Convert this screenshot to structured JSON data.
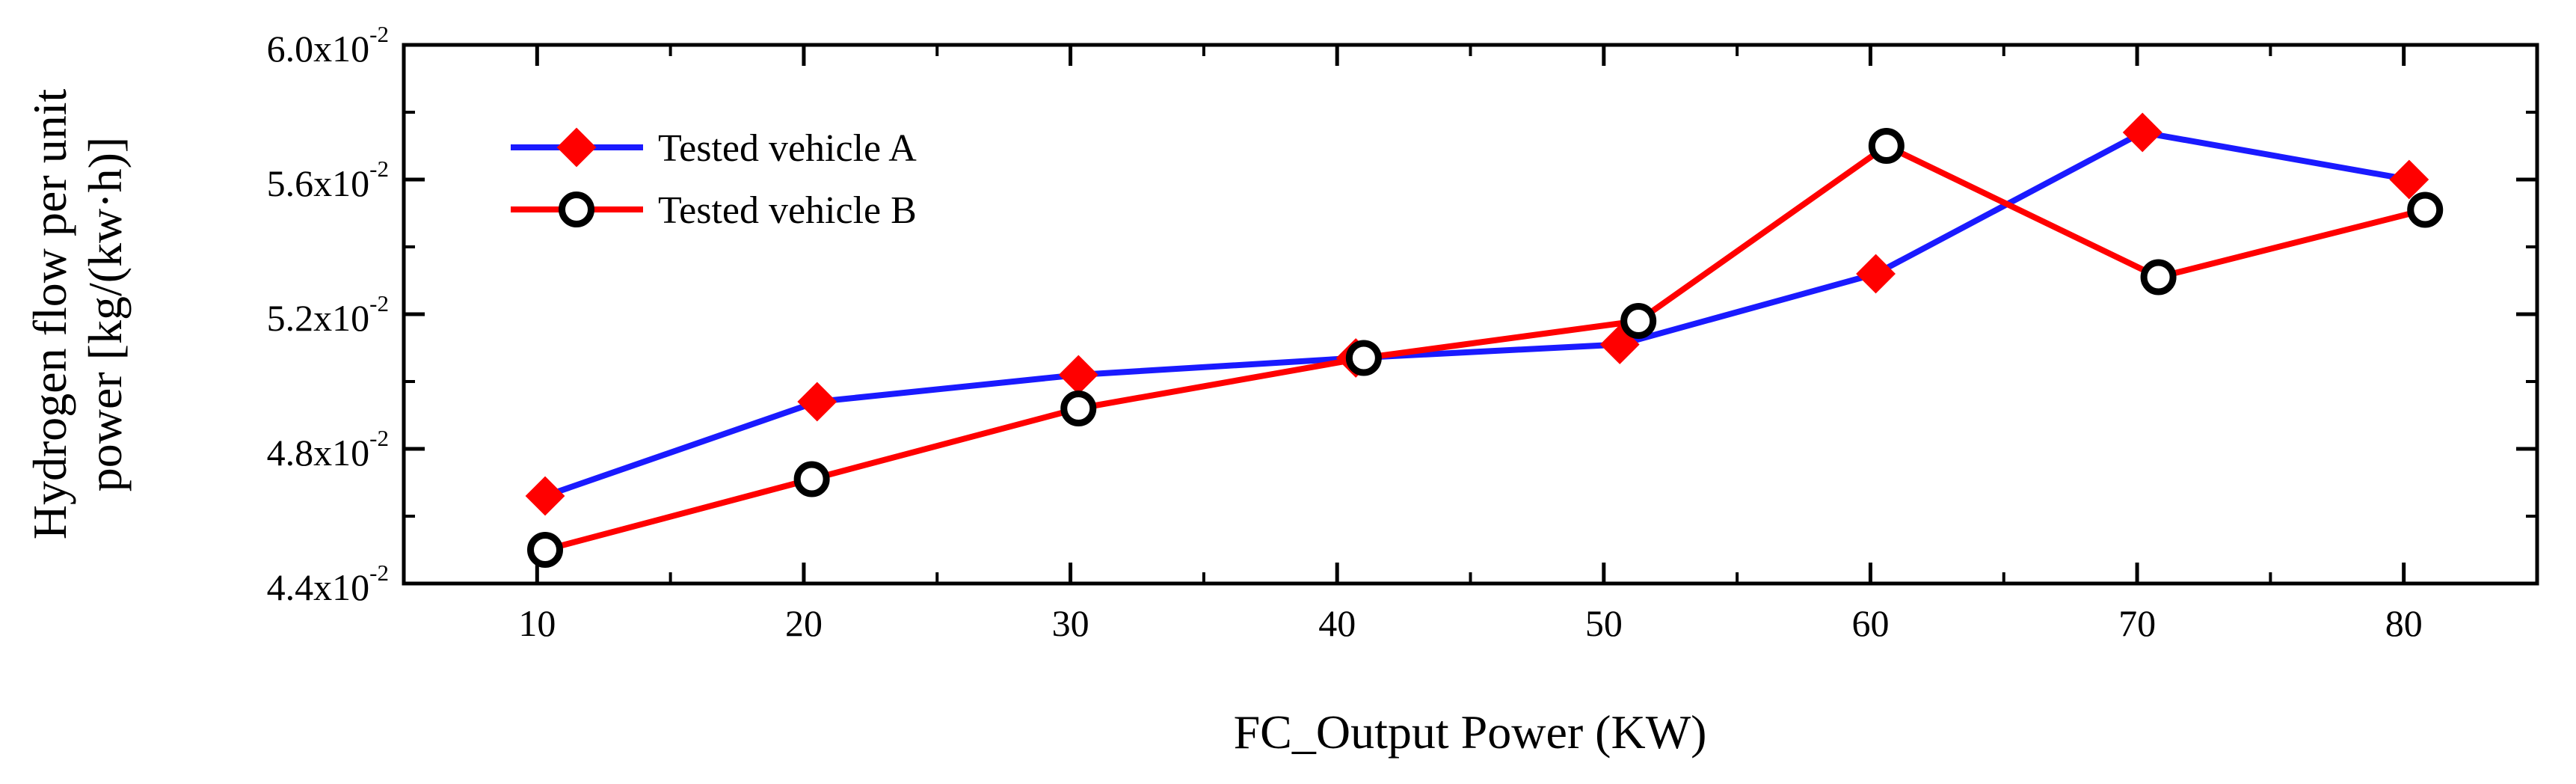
{
  "chart_data": {
    "type": "line",
    "title": "",
    "xlabel": "FC_Output Power (KW)",
    "ylabel_lines": [
      "Hydrogen flow per unit",
      "power [kg/(kw·h)]"
    ],
    "xlim": [
      5,
      85
    ],
    "ylim": [
      0.044,
      0.06
    ],
    "x_ticks": [
      10,
      20,
      30,
      40,
      50,
      60,
      70,
      80
    ],
    "x_tick_labels": [
      "10",
      "20",
      "30",
      "40",
      "50",
      "60",
      "70",
      "80"
    ],
    "y_ticks": [
      0.044,
      0.048,
      0.052,
      0.056,
      0.06
    ],
    "y_tick_labels": [
      {
        "base": "4.4x10",
        "exp": "-2"
      },
      {
        "base": "4.8x10",
        "exp": "-2"
      },
      {
        "base": "5.2x10",
        "exp": "-2"
      },
      {
        "base": "5.6x10",
        "exp": "-2"
      },
      {
        "base": "6.0x10",
        "exp": "-2"
      }
    ],
    "grid": false,
    "legend_position": "top-left",
    "series": [
      {
        "name": "Tested vehicle A",
        "color": "#1a1aff",
        "marker": "diamond",
        "marker_color": "#ff0000",
        "x": [
          10.3,
          20.5,
          30.3,
          40.7,
          50.6,
          60.2,
          70.2,
          80.2
        ],
        "values": [
          0.0466,
          0.0494,
          0.0502,
          0.0507,
          0.0511,
          0.0532,
          0.0574,
          0.056
        ]
      },
      {
        "name": "Tested vehicle B",
        "color": "#ff0000",
        "marker": "circle",
        "marker_color": "#ffffff",
        "x": [
          10.3,
          20.3,
          30.3,
          41.0,
          51.3,
          60.6,
          70.8,
          80.8
        ],
        "values": [
          0.045,
          0.0471,
          0.0492,
          0.0507,
          0.0518,
          0.057,
          0.0531,
          0.0551
        ]
      }
    ]
  }
}
